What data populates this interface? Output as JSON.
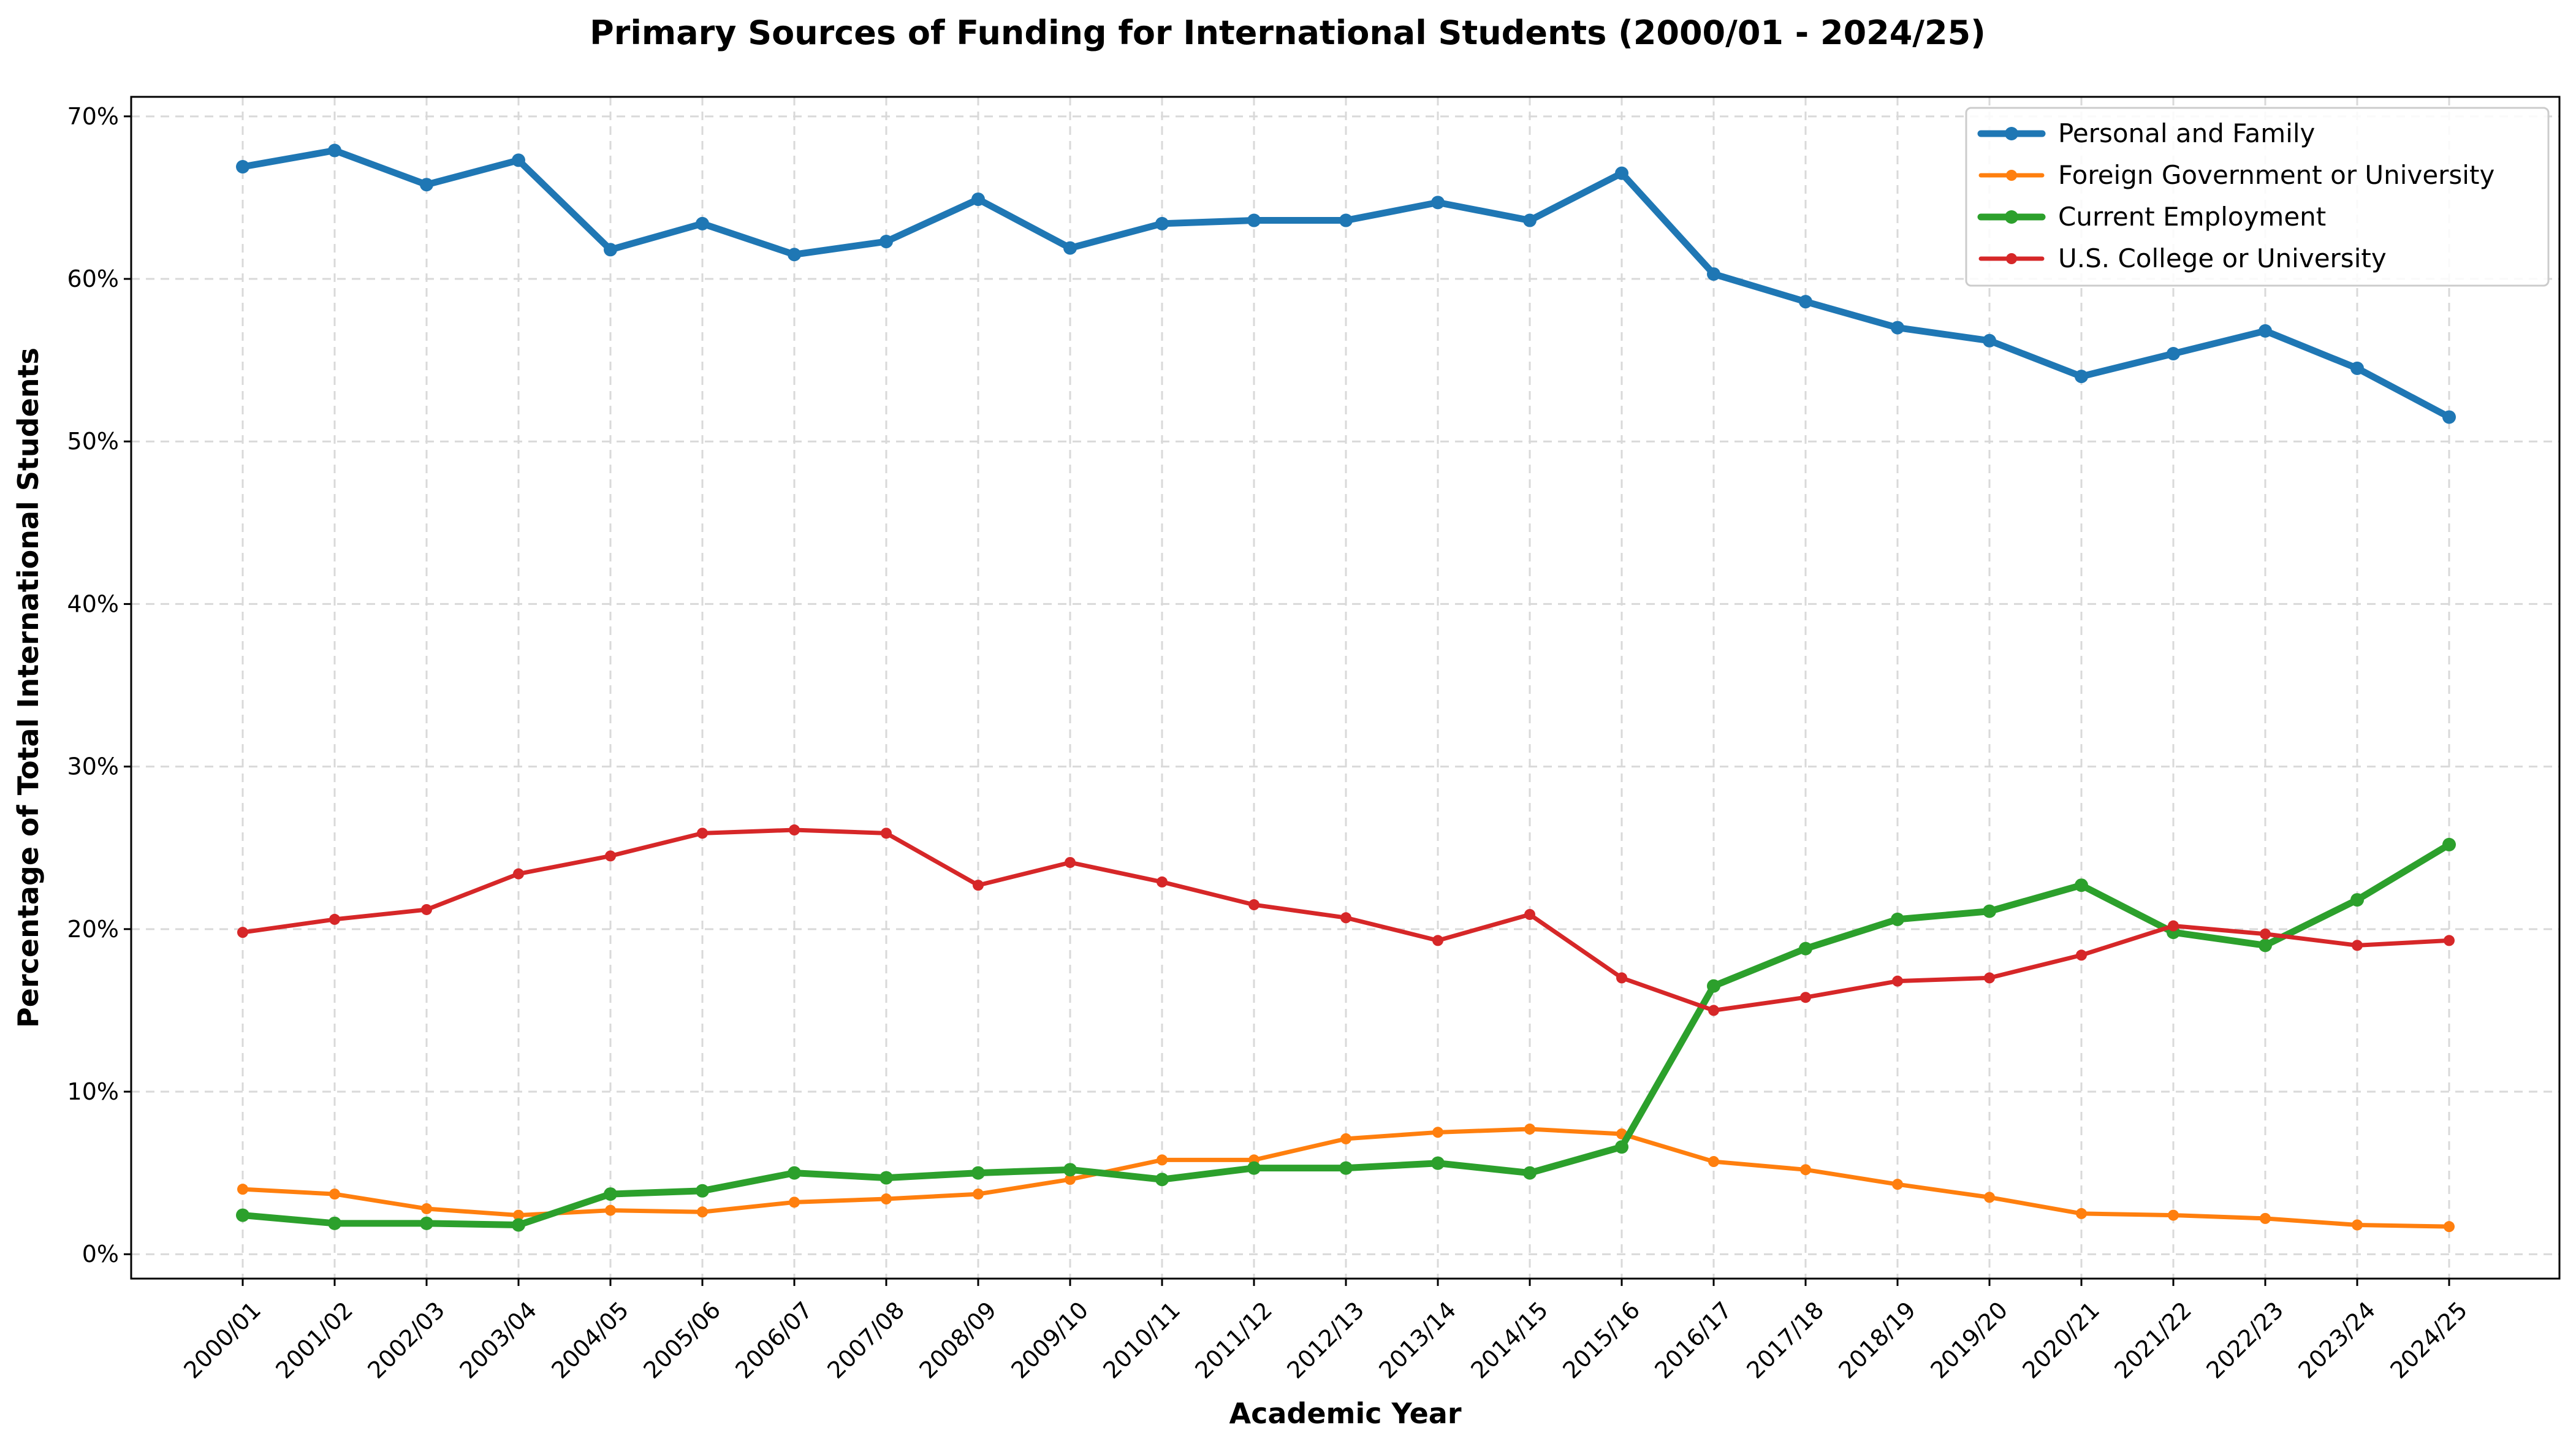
{
  "chart_data": {
    "type": "line",
    "title": "Primary Sources of Funding for International Students (2000/01 - 2024/25)",
    "xlabel": "Academic Year",
    "ylabel": "Percentage of Total International Students",
    "ylim": [
      -1.5,
      71.2
    ],
    "yticks": [
      0,
      10,
      20,
      30,
      40,
      50,
      60,
      70
    ],
    "ytick_labels": [
      "0%",
      "10%",
      "20%",
      "30%",
      "40%",
      "50%",
      "60%",
      "70%"
    ],
    "grid": true,
    "legend_position": "top-right",
    "categories": [
      "2000/01",
      "2001/02",
      "2002/03",
      "2003/04",
      "2004/05",
      "2005/06",
      "2006/07",
      "2007/08",
      "2008/09",
      "2009/10",
      "2010/11",
      "2011/12",
      "2012/13",
      "2013/14",
      "2014/15",
      "2015/16",
      "2016/17",
      "2017/18",
      "2018/19",
      "2019/20",
      "2020/21",
      "2021/22",
      "2022/23",
      "2023/24",
      "2024/25"
    ],
    "series": [
      {
        "name": "Personal and Family",
        "color": "#1f77b4",
        "weight": "thick",
        "values": [
          66.9,
          67.9,
          65.8,
          67.3,
          61.8,
          63.4,
          61.5,
          62.3,
          64.9,
          61.9,
          63.4,
          63.6,
          63.6,
          64.7,
          63.6,
          66.5,
          60.3,
          58.6,
          57.0,
          56.2,
          54.0,
          55.4,
          56.8,
          54.5,
          51.5
        ]
      },
      {
        "name": "Foreign Government or University",
        "color": "#ff7f0e",
        "weight": "normal",
        "values": [
          4.0,
          3.7,
          2.8,
          2.4,
          2.7,
          2.6,
          3.2,
          3.4,
          3.7,
          4.6,
          5.8,
          5.8,
          7.1,
          7.5,
          7.7,
          7.4,
          5.7,
          5.2,
          4.3,
          3.5,
          2.5,
          2.4,
          2.2,
          1.8,
          1.7
        ]
      },
      {
        "name": "Current Employment",
        "color": "#2ca02c",
        "weight": "thick",
        "values": [
          2.4,
          1.9,
          1.9,
          1.8,
          3.7,
          3.9,
          5.0,
          4.7,
          5.0,
          5.2,
          4.6,
          5.3,
          5.3,
          5.6,
          5.0,
          6.6,
          16.5,
          18.8,
          20.6,
          21.1,
          22.7,
          19.8,
          19.0,
          21.8,
          25.2
        ]
      },
      {
        "name": "U.S. College or University",
        "color": "#d62728",
        "weight": "normal",
        "values": [
          19.8,
          20.6,
          21.2,
          23.4,
          24.5,
          25.9,
          26.1,
          25.9,
          22.7,
          24.1,
          22.9,
          21.5,
          20.7,
          19.3,
          20.9,
          17.0,
          15.0,
          15.8,
          16.8,
          17.0,
          18.4,
          20.2,
          19.7,
          19.0,
          19.3
        ]
      }
    ]
  }
}
